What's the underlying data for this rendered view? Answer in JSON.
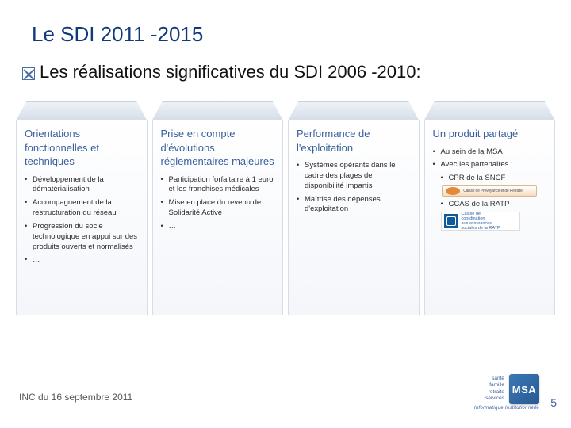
{
  "title": "Le SDI 2011 -2015",
  "subtitle": "Les réalisations significatives du SDI 2006 -2010:",
  "panels": [
    {
      "heading": "Orientations fonctionnelles et techniques",
      "bullets": [
        "Développement de la dématérialisation",
        "Accompagnement de la restructuration du réseau",
        "Progression du socle technologique en appui sur des produits ouverts et normalisés",
        "…"
      ]
    },
    {
      "heading": "Prise en compte d'évolutions réglementaires majeures",
      "bullets": [
        "Participation forfaitaire à 1 euro et les franchises médicales",
        "Mise en place du revenu de Solidarité Active",
        "…"
      ]
    },
    {
      "heading": "Performance de l'exploitation",
      "bullets": [
        "Systèmes opérants dans le cadre des plages de disponibilité impartis",
        "Maîtrise des dépenses d'exploitation"
      ]
    },
    {
      "heading": "Un produit partagé",
      "bullets": [
        "Au sein de la MSA",
        "Avec les partenaires :"
      ],
      "subbullets": [
        "CPR de la SNCF"
      ],
      "extra": "CCAS de la RATP"
    }
  ],
  "footer_left": "INC du 16 septembre 2011",
  "page_number": "5",
  "logo": {
    "side_lines": "santé\nfamille\nretraite\nservices",
    "letters": "MSA",
    "sub": "Informatique Institutionnelle"
  },
  "colors": {
    "title": "#103a7c",
    "panel_heading": "#3a5f9f",
    "page_num": "#3a5f9f"
  }
}
